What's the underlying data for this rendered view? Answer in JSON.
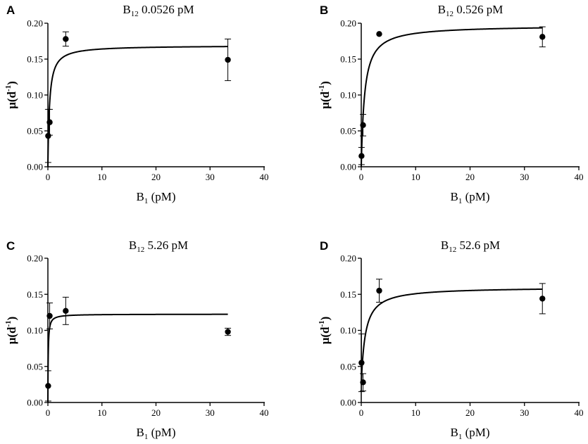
{
  "chart_data": [
    {
      "type": "scatter",
      "panel_label": "A",
      "title": {
        "main": "B",
        "sub": "12",
        "rest": " 0.0526 pM"
      },
      "xlabel": {
        "main": "B",
        "sub": "1",
        "rest": " (pM)"
      },
      "ylabel": {
        "pre": "μ(d",
        "sup": "-1",
        "post": ")"
      },
      "xlim": [
        0,
        40
      ],
      "ylim": [
        0,
        0.2
      ],
      "xticks": [
        "0",
        "10",
        "20",
        "30",
        "40"
      ],
      "yticks": [
        "0.00",
        "0.05",
        "0.10",
        "0.15",
        "0.20"
      ],
      "points": [
        {
          "x": 0.05,
          "y": 0.043,
          "err": 0.037
        },
        {
          "x": 0.33,
          "y": 0.062,
          "err": 0.018
        },
        {
          "x": 3.3,
          "y": 0.178,
          "err": 0.01
        },
        {
          "x": 33.3,
          "y": 0.149,
          "err": 0.029
        }
      ],
      "fit": {
        "model": "monod",
        "mu_max": 0.169,
        "K": 0.3,
        "mu_0": 0
      }
    },
    {
      "type": "scatter",
      "panel_label": "B",
      "title": {
        "main": "B",
        "sub": "12",
        "rest": " 0.526 pM"
      },
      "xlabel": {
        "main": "B",
        "sub": "1",
        "rest": " (pM)"
      },
      "ylabel": {
        "pre": "μ(d",
        "sup": "-1",
        "post": ")"
      },
      "xlim": [
        0,
        40
      ],
      "ylim": [
        0,
        0.2
      ],
      "xticks": [
        "0",
        "10",
        "20",
        "30",
        "40"
      ],
      "yticks": [
        "0.00",
        "0.05",
        "0.10",
        "0.15",
        "0.20"
      ],
      "points": [
        {
          "x": 0.05,
          "y": 0.015,
          "err": 0.012
        },
        {
          "x": 0.33,
          "y": 0.058,
          "err": 0.015
        },
        {
          "x": 3.3,
          "y": 0.185,
          "err": 0
        },
        {
          "x": 33.3,
          "y": 0.181,
          "err": 0.014
        }
      ],
      "fit": {
        "model": "monod",
        "mu_max": 0.197,
        "K": 0.6,
        "mu_0": 0
      }
    },
    {
      "type": "scatter",
      "panel_label": "C",
      "title": {
        "main": "B",
        "sub": "12",
        "rest": " 5.26 pM"
      },
      "xlabel": {
        "main": "B",
        "sub": "1",
        "rest": " (pM)"
      },
      "ylabel": {
        "pre": "μ(d",
        "sup": "-1",
        "post": ")"
      },
      "xlim": [
        0,
        40
      ],
      "ylim": [
        0,
        0.2
      ],
      "xticks": [
        "0",
        "10",
        "20",
        "30",
        "40"
      ],
      "yticks": [
        "0.00",
        "0.05",
        "0.10",
        "0.15",
        "0.20"
      ],
      "points": [
        {
          "x": 0.05,
          "y": 0.023,
          "err": 0.021
        },
        {
          "x": 0.33,
          "y": 0.12,
          "err": 0.018
        },
        {
          "x": 3.3,
          "y": 0.127,
          "err": 0.019
        },
        {
          "x": 33.3,
          "y": 0.098,
          "err": 0.005
        }
      ],
      "fit": {
        "model": "monod",
        "mu_max": 0.1225,
        "K": 0.06,
        "mu_0": 0
      }
    },
    {
      "type": "scatter",
      "panel_label": "D",
      "title": {
        "main": "B",
        "sub": "12",
        "rest": " 52.6 pM"
      },
      "xlabel": {
        "main": "B",
        "sub": "1",
        "rest": " (pM)"
      },
      "ylabel": {
        "pre": "μ(d",
        "sup": "-1",
        "post": ")"
      },
      "xlim": [
        0,
        40
      ],
      "ylim": [
        0,
        0.2
      ],
      "xticks": [
        "0",
        "10",
        "20",
        "30",
        "40"
      ],
      "yticks": [
        "0.00",
        "0.05",
        "0.10",
        "0.15",
        "0.20"
      ],
      "points": [
        {
          "x": 0.05,
          "y": 0.055,
          "err": 0.04
        },
        {
          "x": 0.33,
          "y": 0.028,
          "err": 0.012
        },
        {
          "x": 3.3,
          "y": 0.155,
          "err": 0.016
        },
        {
          "x": 33.3,
          "y": 0.144,
          "err": 0.021
        }
      ],
      "fit": {
        "model": "monod",
        "mu_max": 0.16,
        "K": 0.73,
        "mu_0": 0.025
      }
    }
  ]
}
